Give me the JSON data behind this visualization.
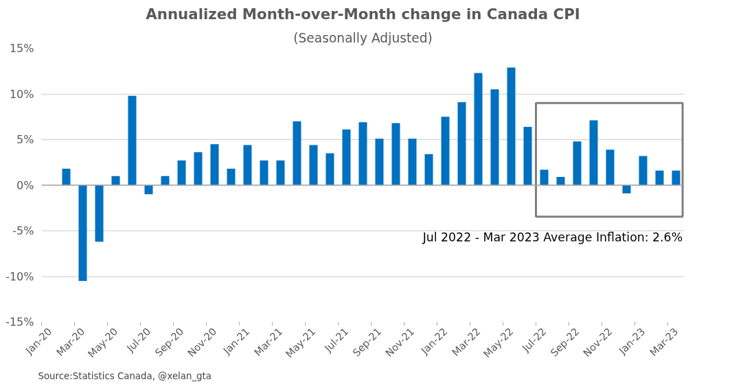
{
  "chart_data": {
    "type": "bar",
    "title": "Annualized Month-over-Month change in Canada CPI",
    "subtitle": "(Seasonally Adjusted)",
    "categories": [
      "Jan-20",
      null,
      "Mar-20",
      null,
      "May-20",
      null,
      "Jul-20",
      null,
      "Sep-20",
      null,
      "Nov-20",
      null,
      "Jan-21",
      null,
      "Mar-21",
      null,
      "May-21",
      null,
      "Jul-21",
      null,
      "Sep-21",
      null,
      "Nov-21",
      null,
      "Jan-22",
      null,
      "Mar-22",
      null,
      "May-22",
      null,
      "Jul-22",
      null,
      "Sep-22",
      null,
      "Nov-22",
      null,
      "Jan-23",
      null,
      "Mar-23"
    ],
    "values": [
      null,
      1.8,
      -10.5,
      -6.2,
      1.0,
      9.8,
      -1.0,
      1.0,
      2.7,
      3.6,
      4.5,
      1.8,
      4.4,
      2.7,
      2.7,
      7.0,
      4.4,
      3.5,
      6.1,
      6.9,
      5.1,
      6.8,
      5.1,
      3.4,
      7.5,
      9.1,
      12.3,
      10.5,
      12.9,
      6.4,
      1.7,
      0.9,
      4.8,
      7.1,
      3.9,
      -0.9,
      3.2,
      1.6,
      1.6
    ],
    "color": "#0070c0",
    "ylim": [
      -15,
      15
    ],
    "yticks": [
      {
        "value": -15,
        "label": "-15%"
      },
      {
        "value": -10,
        "label": "-10%"
      },
      {
        "value": -5,
        "label": "-5%"
      },
      {
        "value": 0,
        "label": "0%"
      },
      {
        "value": 5,
        "label": "5%"
      },
      {
        "value": 10,
        "label": "10%"
      },
      {
        "value": 15,
        "label": "15%"
      }
    ],
    "grid": "y",
    "annotations": [
      "Jul 2022 - Mar 2023 Average Inflation: 2.6%",
      "Source:Statistics Canada, @xelan_gta"
    ]
  }
}
